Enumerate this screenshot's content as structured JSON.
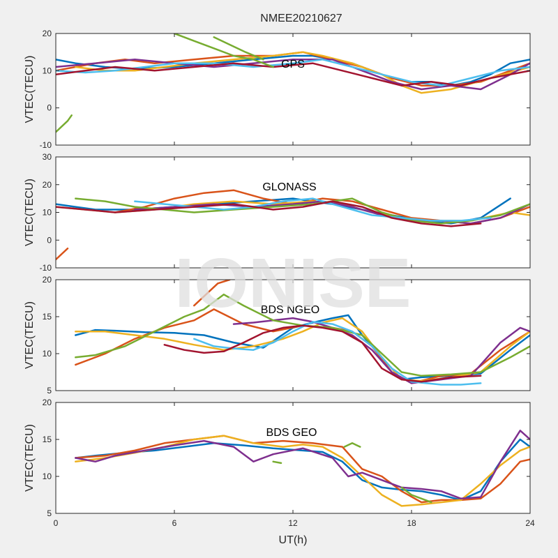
{
  "title": "NMEE20210627",
  "watermark": "IONISE",
  "xlabel": "UT(h)",
  "x_ticks": [
    "0",
    "6",
    "12",
    "18",
    "24"
  ],
  "colors": [
    "#0072BD",
    "#D95319",
    "#EDB120",
    "#7E2F8E",
    "#77AC30",
    "#4DBEEE",
    "#A2142F"
  ],
  "chart_data": [
    {
      "type": "line",
      "label": "GPS",
      "ylabel": "VTEC(TECU)",
      "xlim": [
        0,
        24
      ],
      "ylim": [
        -10,
        20
      ],
      "y_ticks": [
        "-10",
        "0",
        "10",
        "20"
      ],
      "series": [
        {
          "color": "#77AC30",
          "x": [
            0,
            0.3,
            0.6,
            0.8
          ],
          "y": [
            -6.5,
            -5,
            -3.5,
            -2
          ]
        },
        {
          "color": "#0072BD",
          "x": [
            0,
            1,
            2.5,
            4,
            6,
            8,
            10,
            12,
            13,
            14,
            15,
            16,
            17,
            18,
            19,
            20,
            21,
            22,
            23,
            24
          ],
          "y": [
            13,
            12,
            11,
            10.5,
            11,
            12,
            13,
            14,
            14,
            13,
            12,
            10,
            8,
            7,
            7,
            6,
            7,
            9,
            12,
            13
          ]
        },
        {
          "color": "#D95319",
          "x": [
            0,
            1,
            2,
            3.5,
            5,
            7,
            9,
            11,
            12.5,
            14,
            15.5,
            17,
            18.5,
            20,
            21.5,
            23,
            24
          ],
          "y": [
            10,
            11,
            12,
            13,
            12,
            13,
            14,
            14,
            15,
            13,
            11,
            8,
            6,
            6,
            7,
            10,
            12
          ]
        },
        {
          "color": "#EDB120",
          "x": [
            1,
            2.5,
            4,
            5.5,
            7,
            9,
            11,
            12.5,
            13.5,
            15,
            16.5,
            17.5,
            18.5,
            20,
            22,
            24
          ],
          "y": [
            11,
            10,
            10,
            11,
            12,
            13,
            14,
            15,
            14,
            12,
            9,
            6,
            4,
            5,
            8,
            11
          ]
        },
        {
          "color": "#7E2F8E",
          "x": [
            0,
            2,
            4,
            6,
            8,
            10,
            12,
            14,
            15.5,
            17,
            18.5,
            20,
            21.5,
            23,
            24
          ],
          "y": [
            11,
            12,
            13,
            12,
            11,
            12,
            13,
            13,
            10,
            7,
            5,
            6,
            5,
            9,
            12
          ]
        },
        {
          "color": "#4DBEEE",
          "x": [
            0,
            1.5,
            3,
            4.5,
            6,
            8,
            10,
            12,
            13.5,
            15,
            16.5,
            18,
            19.5,
            21,
            22.5,
            24
          ],
          "y": [
            10,
            9.5,
            10,
            11,
            12,
            12,
            11,
            12,
            13,
            11,
            9,
            7,
            6,
            8,
            10,
            11
          ]
        },
        {
          "color": "#A2142F",
          "x": [
            0,
            1.5,
            3,
            5,
            7,
            9,
            11,
            13,
            14.5,
            16,
            17.5,
            19,
            20.5,
            22,
            24
          ],
          "y": [
            9,
            10,
            11,
            10,
            11,
            12,
            11,
            12,
            10,
            8,
            6,
            7,
            6,
            8,
            10
          ]
        },
        {
          "color": "#77AC30",
          "x": [
            6,
            7,
            8,
            9,
            10,
            11
          ],
          "y": [
            20,
            18,
            16,
            14,
            13,
            11
          ]
        },
        {
          "color": "#77AC30",
          "x": [
            8,
            8.8,
            9.6,
            10.5
          ],
          "y": [
            19,
            17,
            15,
            13
          ]
        }
      ]
    },
    {
      "type": "line",
      "label": "GLONASS",
      "ylabel": "VTEC(TECU)",
      "xlim": [
        0,
        24
      ],
      "ylim": [
        -10,
        30
      ],
      "y_ticks": [
        "-10",
        "0",
        "10",
        "20",
        "30"
      ],
      "series": [
        {
          "color": "#D95319",
          "x": [
            0,
            0.3,
            0.6
          ],
          "y": [
            -7,
            -5,
            -3
          ]
        },
        {
          "color": "#0072BD",
          "x": [
            0,
            1,
            2,
            4,
            6,
            8,
            10,
            12,
            14,
            15.5,
            17,
            18.5,
            20,
            21.5,
            23
          ],
          "y": [
            13,
            12,
            11,
            11,
            12,
            13,
            14,
            15,
            13,
            11,
            9,
            7,
            6,
            8,
            15
          ]
        },
        {
          "color": "#D95319",
          "x": [
            3,
            4.5,
            6,
            7.5,
            9,
            10.5,
            12,
            13.5,
            15,
            16.5,
            18,
            19.5,
            21,
            22.5,
            24
          ],
          "y": [
            10,
            12,
            15,
            17,
            18,
            15,
            13,
            15,
            14,
            11,
            8,
            7,
            6,
            8,
            12
          ]
        },
        {
          "color": "#EDB120",
          "x": [
            0,
            1.5,
            3,
            5,
            7,
            9,
            11,
            13,
            14.5,
            16,
            17.5,
            19,
            21,
            23,
            24
          ],
          "y": [
            12,
            11,
            10,
            11,
            13,
            14,
            13,
            14,
            13,
            10,
            8,
            7,
            7,
            10,
            9
          ]
        },
        {
          "color": "#7E2F8E",
          "x": [
            4,
            6,
            8,
            10,
            12,
            13.5,
            15,
            16.5,
            18,
            19.5,
            21,
            22.5,
            24
          ],
          "y": [
            11,
            12,
            13,
            12,
            13,
            14,
            12,
            9,
            7,
            7,
            6,
            8,
            13
          ]
        },
        {
          "color": "#77AC30",
          "x": [
            1,
            2.5,
            4,
            5.5,
            7,
            9,
            11,
            13,
            15,
            16.5,
            18,
            19.5,
            21,
            22.5,
            24
          ],
          "y": [
            15,
            14,
            12,
            11,
            10,
            11,
            12,
            13,
            15,
            10,
            7,
            6,
            7,
            9,
            13
          ]
        },
        {
          "color": "#4DBEEE",
          "x": [
            4,
            5.5,
            7,
            8.5,
            10,
            11.5,
            13,
            14.5,
            16,
            17.5,
            19,
            20.5,
            22
          ],
          "y": [
            14,
            13,
            12,
            11,
            12,
            14,
            15,
            12,
            9,
            8,
            7,
            7,
            8
          ]
        },
        {
          "color": "#A2142F",
          "x": [
            0,
            1.5,
            3,
            5,
            7,
            9,
            11,
            12.5,
            14,
            15.5,
            17,
            18.5,
            20,
            21.5
          ],
          "y": [
            12,
            11,
            10,
            11,
            12,
            13,
            11,
            12,
            14,
            12,
            8,
            6,
            5,
            6
          ]
        }
      ]
    },
    {
      "type": "line",
      "label": "BDS NGEO",
      "ylabel": "VTEC(TECU)",
      "xlim": [
        0,
        24
      ],
      "ylim": [
        5,
        20
      ],
      "y_ticks": [
        "5",
        "10",
        "15",
        "20"
      ],
      "series": [
        {
          "color": "#0072BD",
          "x": [
            1,
            2,
            3,
            4.5,
            6,
            7.5,
            9,
            10.5,
            12,
            13,
            14,
            14.8,
            15.5,
            16.5,
            17.5,
            18.5,
            20,
            21.5,
            23,
            24
          ],
          "y": [
            12.5,
            13.2,
            13.1,
            12.9,
            12.8,
            12.5,
            11.5,
            10.8,
            13.5,
            14.2,
            14.8,
            15.2,
            12.5,
            9.5,
            6.5,
            6.8,
            7,
            7.3,
            10.5,
            12.5
          ]
        },
        {
          "color": "#D95319",
          "x": [
            1,
            2.5,
            4,
            5.5,
            7,
            8,
            9.5,
            11,
            12.5,
            14,
            15,
            16,
            17,
            18,
            19.5,
            21,
            22.5,
            24
          ],
          "y": [
            8.5,
            10,
            12,
            13.5,
            14.5,
            16,
            14,
            13,
            13.8,
            13.5,
            13,
            11,
            7.5,
            6,
            7,
            7.3,
            10.5,
            13
          ]
        },
        {
          "color": "#EDB120",
          "x": [
            1,
            2.5,
            4,
            5.5,
            7,
            8.5,
            10,
            11.5,
            12.5,
            13.5,
            14.5,
            15.5,
            16.5,
            17.5,
            18.5,
            20,
            21.5,
            23,
            24
          ],
          "y": [
            13,
            13,
            12.5,
            12,
            11.2,
            10.5,
            11,
            12,
            13,
            14.2,
            14.8,
            13,
            9.5,
            6.5,
            6.3,
            6.8,
            7.5,
            11,
            13
          ]
        },
        {
          "color": "#7E2F8E",
          "x": [
            9,
            10,
            11,
            12,
            13,
            14,
            15,
            16,
            17,
            18,
            19.5,
            21,
            22.5,
            23.5,
            24
          ],
          "y": [
            14,
            14.2,
            14.5,
            14.8,
            14.3,
            13.5,
            12.5,
            10.5,
            7.5,
            6,
            6.5,
            7,
            11.5,
            13.5,
            13
          ]
        },
        {
          "color": "#77AC30",
          "x": [
            1,
            2,
            3.5,
            5,
            6.5,
            7.5,
            8.5,
            9.5,
            11,
            12.5,
            14,
            15.5,
            16.5,
            17.5,
            18.5,
            20,
            21.5,
            23,
            24
          ],
          "y": [
            9.5,
            9.8,
            11,
            13,
            15,
            16,
            18,
            16.5,
            14.5,
            13.8,
            13.5,
            12.5,
            10,
            7.5,
            7,
            7.2,
            7.5,
            9.5,
            11
          ]
        },
        {
          "color": "#4DBEEE",
          "x": [
            7,
            8,
            9,
            10,
            11,
            12,
            13,
            14,
            15,
            16,
            17,
            18,
            19.5,
            20.5,
            21.5
          ],
          "y": [
            12,
            11,
            10.7,
            10.5,
            11.5,
            13,
            14.3,
            14,
            13,
            11,
            8,
            6.2,
            5.8,
            5.8,
            6
          ]
        },
        {
          "color": "#A2142F",
          "x": [
            5.5,
            6.5,
            7.5,
            8.5,
            9.5,
            10.5,
            11.5,
            12.5,
            13.5,
            14.5,
            15.5,
            16.5,
            17.5,
            18.5,
            20,
            21.5
          ],
          "y": [
            11.2,
            10.5,
            10.1,
            10.3,
            11.5,
            12.8,
            13.5,
            13.8,
            13.5,
            13,
            11.5,
            8,
            6.5,
            6.2,
            6.8,
            7
          ]
        },
        {
          "color": "#D95319",
          "x": [
            7,
            7.6,
            8.2,
            8.8
          ],
          "y": [
            16.5,
            18,
            19.5,
            20
          ]
        }
      ]
    },
    {
      "type": "line",
      "label": "BDS GEO",
      "ylabel": "VTEC(TECU)",
      "xlim": [
        0,
        24
      ],
      "ylim": [
        5,
        20
      ],
      "y_ticks": [
        "5",
        "10",
        "15",
        "20"
      ],
      "series": [
        {
          "color": "#0072BD",
          "x": [
            1,
            2,
            3.5,
            5,
            6.5,
            8,
            9.5,
            11,
            12.5,
            13.5,
            14.5,
            15.5,
            16.5,
            17.5,
            18.5,
            19.5,
            20.5,
            21.5,
            22.5,
            23.5,
            24
          ],
          "y": [
            12.5,
            12.8,
            13.2,
            13.5,
            14,
            14.5,
            14.2,
            13.8,
            13.5,
            13.3,
            12,
            9.5,
            8.5,
            8.2,
            8,
            7.5,
            6.8,
            8,
            12,
            15,
            14
          ]
        },
        {
          "color": "#D95319",
          "x": [
            1,
            2.5,
            4,
            5.5,
            7,
            8.5,
            10,
            11.5,
            13,
            14.5,
            15.5,
            16.5,
            17.5,
            18.5,
            19.5,
            20.5,
            21.5,
            22.5,
            23.5,
            24
          ],
          "y": [
            12.5,
            12.8,
            13.5,
            14.5,
            15,
            15.5,
            14.5,
            14.8,
            14.5,
            14,
            11,
            10,
            8,
            6.5,
            6.8,
            6.8,
            7,
            9,
            12,
            12.3
          ]
        },
        {
          "color": "#EDB120",
          "x": [
            1,
            2.5,
            4,
            5.5,
            7,
            8.5,
            10,
            11.5,
            12.5,
            13.5,
            14.5,
            15.5,
            16.5,
            17.5,
            18.5,
            19.5,
            20.5,
            21.5,
            22.5,
            23.5,
            24
          ],
          "y": [
            12,
            12.5,
            13.2,
            14,
            15,
            15.5,
            14.5,
            14,
            14.3,
            14,
            12.5,
            10,
            7.5,
            6,
            6.2,
            6.5,
            6.8,
            9,
            11.5,
            13.5,
            14
          ]
        },
        {
          "color": "#7E2F8E",
          "x": [
            1,
            2,
            3,
            4.5,
            6,
            7.5,
            9,
            10,
            11,
            12.5,
            14,
            14.8,
            15.5,
            16.5,
            17.5,
            18.5,
            19.5,
            20.5,
            21.5,
            22.5,
            23.5,
            24
          ],
          "y": [
            12.5,
            12,
            12.8,
            13.5,
            14.2,
            14.8,
            14,
            12,
            13,
            13.8,
            12.5,
            10,
            10.5,
            9.5,
            8.5,
            8.3,
            8,
            7,
            7.2,
            12,
            16.2,
            15
          ]
        },
        {
          "color": "#77AC30",
          "x": [
            11,
            11.4
          ],
          "y": [
            12,
            11.8
          ]
        },
        {
          "color": "#77AC30",
          "x": [
            14.6,
            15,
            15.4
          ],
          "y": [
            14,
            14.5,
            14
          ]
        },
        {
          "color": "#77AC30",
          "x": [
            17.5,
            18,
            18.5,
            19
          ],
          "y": [
            8.5,
            7.5,
            7,
            6.5
          ]
        }
      ]
    }
  ]
}
